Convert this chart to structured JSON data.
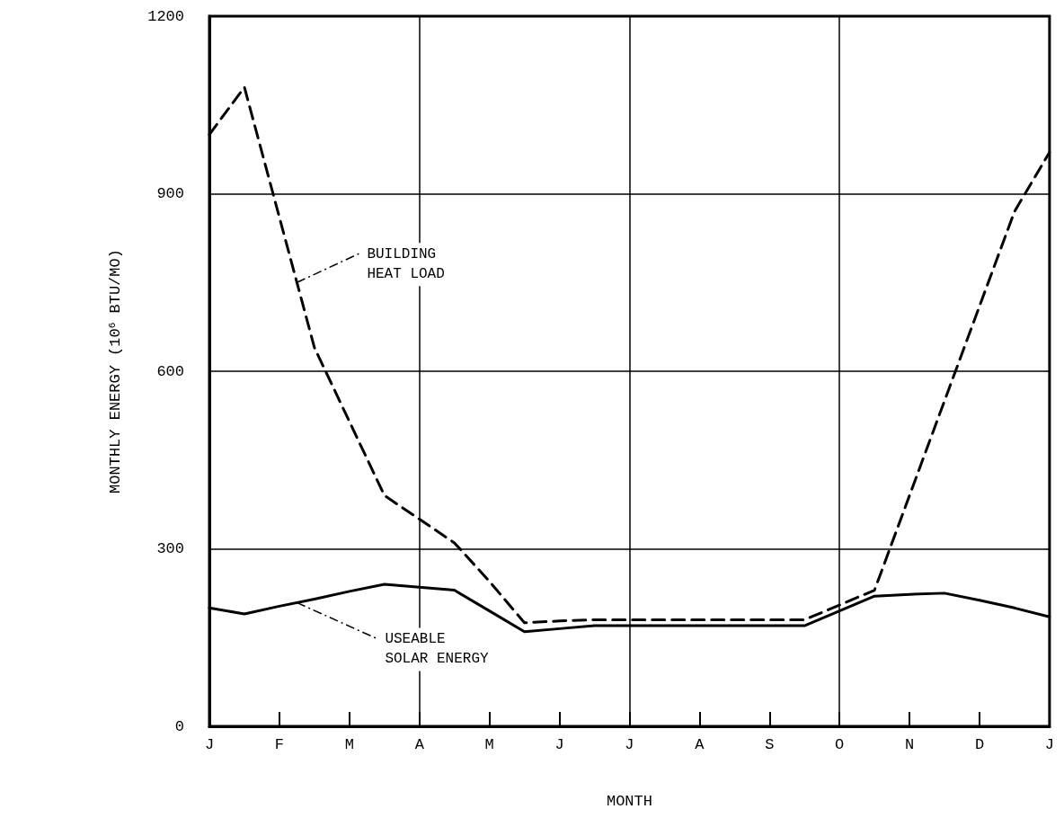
{
  "chart_data": {
    "type": "line",
    "xlabel": "MONTH",
    "ylabel": "MONTHLY ENERGY (10$^{6}$ BTU/MO)",
    "categories": [
      "J",
      null,
      "F",
      null,
      "M",
      null,
      "A",
      null,
      "M",
      null,
      "J",
      null,
      "J",
      null,
      "A",
      null,
      "S",
      null,
      "O",
      null,
      "N",
      null,
      "D",
      null,
      "J"
    ],
    "ylim": [
      0,
      1200
    ],
    "yticks": [
      0,
      300,
      600,
      900,
      1200
    ],
    "grid": true,
    "marker": "none",
    "series": [
      {
        "name": "BUILDING\nHEAT LOAD",
        "color": "#000000",
        "line_style": "dashed",
        "values": [
          1000,
          1080,
          860,
          640,
          515,
          390,
          350,
          310,
          245,
          175,
          178,
          180,
          180,
          180,
          180,
          180,
          180,
          180,
          205,
          230,
          390,
          550,
          710,
          870,
          970
        ]
      },
      {
        "name": "USEABLE\nSOLAR ENERGY",
        "color": "#000000",
        "line_style": "solid",
        "values": [
          200,
          190,
          203,
          215,
          228,
          240,
          235,
          230,
          195,
          160,
          165,
          170,
          170,
          170,
          170,
          170,
          170,
          170,
          195,
          220,
          223,
          225,
          213,
          200,
          185
        ]
      }
    ]
  }
}
